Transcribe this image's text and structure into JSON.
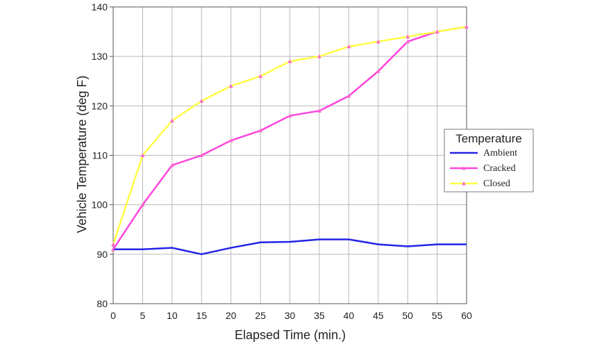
{
  "chart_data": {
    "type": "line",
    "title": "",
    "xlabel": "Elapsed Time (min.)",
    "ylabel": "Vehicle Temperature (deg F)",
    "x": [
      0,
      5,
      10,
      15,
      20,
      25,
      30,
      35,
      40,
      45,
      50,
      55,
      60
    ],
    "xlim": [
      0,
      60
    ],
    "ylim": [
      80,
      140
    ],
    "xticks": [
      0,
      5,
      10,
      15,
      20,
      25,
      30,
      35,
      40,
      45,
      50,
      55,
      60
    ],
    "yticks": [
      80,
      90,
      100,
      110,
      120,
      130,
      140
    ],
    "grid": true,
    "legend": {
      "title": "Temperature",
      "position": "right"
    },
    "series": [
      {
        "name": "Ambient",
        "color": "#2323e8",
        "markers": false,
        "values": [
          91,
          91,
          91.3,
          90,
          91.3,
          92.4,
          92.5,
          93,
          93,
          92,
          91.6,
          92,
          92
        ]
      },
      {
        "name": "Cracked",
        "color": "#ff44dd",
        "markers": true,
        "values": [
          91,
          100,
          108,
          110,
          113,
          115,
          118,
          119,
          122,
          127,
          133,
          135,
          136
        ]
      },
      {
        "name": "Closed",
        "color": "#ffff44",
        "markers": true,
        "values": [
          92,
          110,
          117,
          121,
          124,
          126,
          129,
          130,
          132,
          133,
          134,
          135,
          136
        ]
      }
    ]
  },
  "colors": {
    "grid": "#b9b9b9",
    "axis": "#555555",
    "marker": "#ff66cc"
  }
}
